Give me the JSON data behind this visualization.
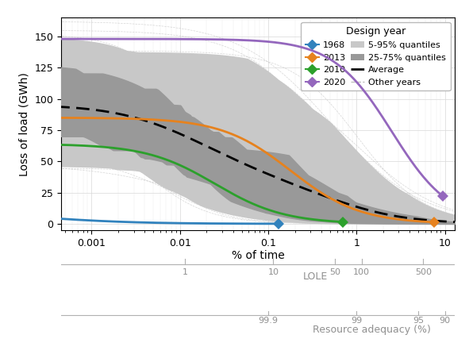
{
  "xlabel": "% of time",
  "ylabel": "Loss of load (GWh)",
  "ylim": [
    -5,
    165
  ],
  "xlim": [
    0.00045,
    13
  ],
  "design_years": {
    "1968": {
      "color": "#3182bd",
      "peak": 10.5,
      "x_mid": 0.00025,
      "steep": 0.6,
      "end_x": 0.13
    },
    "2013": {
      "color": "#e6821e",
      "peak": 85.0,
      "x_mid": 0.18,
      "steep": 0.85,
      "end_x": 7.5
    },
    "2010": {
      "color": "#2ca02c",
      "peak": 64.0,
      "x_mid": 0.025,
      "steep": 0.85,
      "end_x": 0.7
    },
    "2020": {
      "color": "#9467bd",
      "peak": 148.0,
      "x_mid": 2.5,
      "steep": 1.0,
      "end_x": 9.5
    }
  },
  "n_other": 45,
  "color_band_outer": "#c8c8c8",
  "color_band_inner": "#999999",
  "color_other": "#c0c0c0",
  "color_avg": "#000000",
  "lole_vals": [
    1,
    10,
    50,
    100,
    500
  ],
  "ra_vals": [
    "99.9",
    "99",
    "95",
    "90"
  ],
  "hours_per_year": 8760,
  "legend_title": "Design year",
  "marker_size": 7
}
